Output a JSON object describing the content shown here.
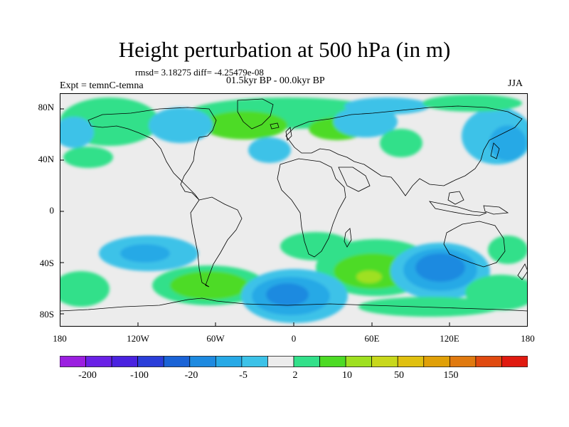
{
  "title": "Height perturbation at 500 hPa (in m)",
  "stats": "rmsd= 3.18275 diff= -4.25479e-08",
  "expt": "Expt = temnC-temna",
  "period": "01.5kyr BP - 00.0kyr BP",
  "season": "JJA",
  "lat_labels": [
    "80N",
    "40N",
    "0",
    "40S",
    "80S"
  ],
  "lon_labels": [
    "180",
    "120W",
    "60W",
    "0",
    "60E",
    "120E",
    "180"
  ],
  "colorbar": {
    "labels": [
      "-200",
      "-100",
      "-20",
      "-5",
      "2",
      "10",
      "50",
      "150"
    ],
    "colors": [
      "#9b1fe0",
      "#6a21e6",
      "#4a22e0",
      "#2a3ed9",
      "#1a63d6",
      "#1e8ae0",
      "#27a9e6",
      "#3cc2e8",
      "#ececec",
      "#33e08a",
      "#4ddb25",
      "#9fe020",
      "#c8d81c",
      "#e0c010",
      "#e0a008",
      "#e07a10",
      "#e04a10",
      "#e01a10"
    ]
  },
  "fill_colors": {
    "background": "#ececec",
    "pos_light": "#33e08a",
    "pos_mid": "#4ddb25",
    "pos_high": "#9fe020",
    "neg_light": "#3cc2e8",
    "neg_mid": "#27a9e6",
    "neg_deep": "#1e8ae0",
    "neg_core": "#1a63d6"
  }
}
